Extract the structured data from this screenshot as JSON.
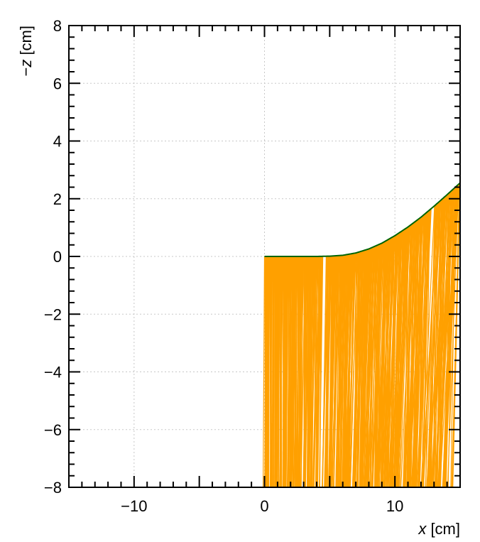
{
  "chart_data": {
    "type": "line",
    "xlabel": {
      "var": "x",
      "unit": " [cm]"
    },
    "ylabel": {
      "prefix": "−",
      "var": "z",
      "unit": " [cm]"
    },
    "xlim": [
      -15,
      15
    ],
    "ylim": [
      -8,
      8
    ],
    "x_major_ticks": [
      -10,
      0,
      10
    ],
    "x_tick_labels": [
      "−10",
      "0",
      "10"
    ],
    "y_major_ticks": [
      -8,
      -6,
      -4,
      -2,
      0,
      2,
      4,
      6,
      8
    ],
    "y_tick_labels": [
      "−8",
      "−6",
      "−4",
      "−2",
      "0",
      "2",
      "4",
      "6",
      "8"
    ],
    "grid": true,
    "colors": {
      "rays": "#ffa000",
      "surface": "#006400",
      "grid": "#c8c8c8",
      "axes": "#000000"
    },
    "series": [
      {
        "kind": "surface-curve",
        "x": [
          0,
          1,
          2,
          3,
          4,
          5,
          6,
          7,
          8,
          9,
          10,
          11,
          12,
          13,
          14,
          15
        ],
        "y": [
          0,
          0,
          0,
          0,
          0,
          0.01,
          0.04,
          0.12,
          0.26,
          0.46,
          0.72,
          1.02,
          1.36,
          1.74,
          2.14,
          2.55
        ]
      },
      {
        "kind": "ray-fill",
        "x_range": [
          0,
          15
        ],
        "bottom": -8,
        "gaps_at": [
          4.6,
          12.9
        ]
      }
    ]
  }
}
